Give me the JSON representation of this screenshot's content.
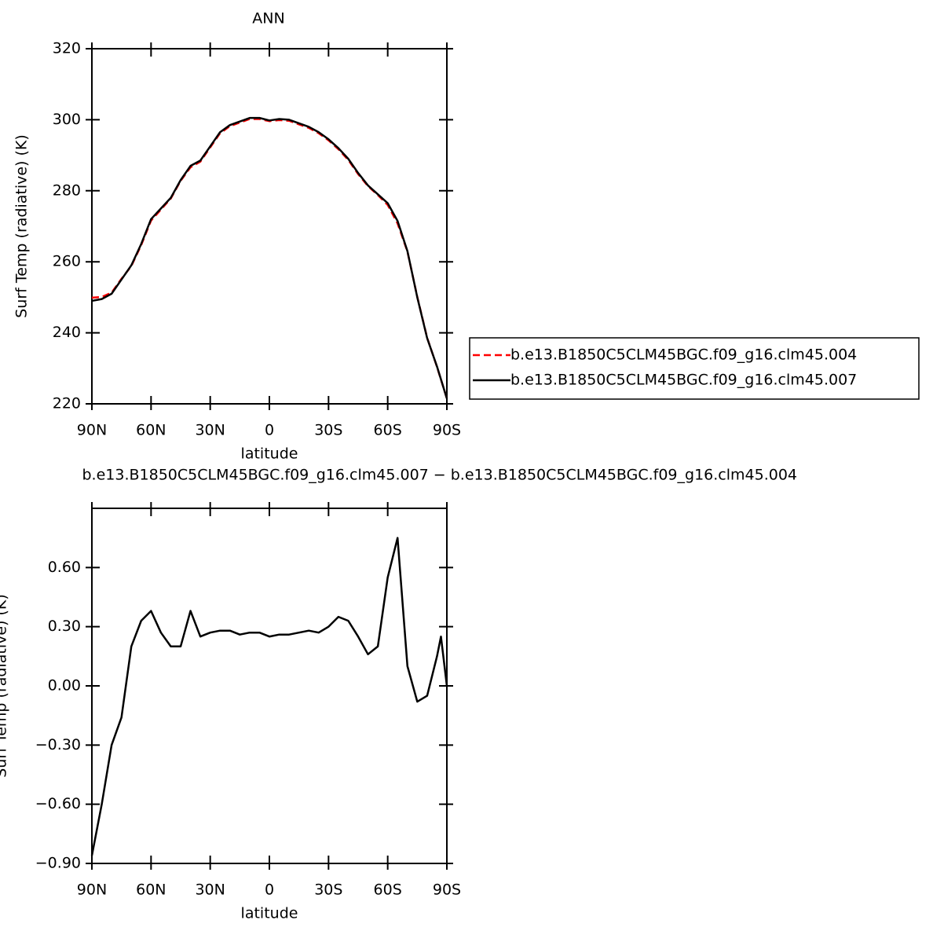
{
  "chart_data": [
    {
      "type": "line",
      "title": "ANN",
      "xlabel": "latitude",
      "ylabel": "Surf Temp (radiative) (K)",
      "x": [
        90,
        85,
        80,
        75,
        70,
        65,
        60,
        55,
        50,
        45,
        40,
        35,
        30,
        25,
        20,
        15,
        10,
        5,
        0,
        -5,
        -10,
        -15,
        -20,
        -25,
        -30,
        -35,
        -40,
        -45,
        -50,
        -55,
        -60,
        -65,
        -70,
        -75,
        -80,
        -85,
        -90
      ],
      "series": [
        {
          "name": "b.e13.B1850C5CLM45BGC.f09_g16.clm45.004",
          "color": "#ff0000",
          "linestyle": "dashed",
          "values": [
            249.9,
            250.1,
            251.3,
            255.2,
            258.8,
            264.7,
            271.6,
            274.7,
            277.8,
            282.8,
            286.6,
            288.2,
            292.2,
            296.2,
            298.2,
            299.2,
            300.2,
            300.2,
            299.6,
            299.9,
            299.7,
            298.7,
            297.7,
            296.2,
            294.2,
            291.7,
            288.7,
            284.7,
            281.3,
            278.8,
            276.0,
            270.8,
            262.9,
            250.1,
            238.6,
            230.4,
            221.5
          ]
        },
        {
          "name": "b.e13.B1850C5CLM45BGC.f09_g16.clm45.007",
          "color": "#000000",
          "linestyle": "solid",
          "values": [
            249,
            249.5,
            251,
            255,
            259,
            265,
            272,
            275,
            278,
            283,
            287,
            288.5,
            292.5,
            296.5,
            298.5,
            299.5,
            300.5,
            300.5,
            299.8,
            300.2,
            300,
            299,
            298,
            296.5,
            294.5,
            292,
            289,
            285,
            281.5,
            279,
            276.5,
            271.5,
            263,
            250,
            238.5,
            230.5,
            221.5
          ]
        }
      ],
      "xlim": [
        90,
        -90
      ],
      "xticks": [
        {
          "value": 90,
          "label": "90N"
        },
        {
          "value": 60,
          "label": "60N"
        },
        {
          "value": 30,
          "label": "30N"
        },
        0,
        {
          "value": -30,
          "label": "30S"
        },
        {
          "value": -60,
          "label": "60S"
        },
        {
          "value": -90,
          "label": "90S"
        }
      ],
      "ylim": [
        220,
        320
      ],
      "yticks": [
        220,
        240,
        260,
        280,
        300,
        320
      ],
      "legend": "outside-right"
    },
    {
      "type": "line",
      "title": "b.e13.B1850C5CLM45BGC.f09_g16.clm45.007 − b.e13.B1850C5CLM45BGC.f09_g16.clm45.004",
      "xlabel": "latitude",
      "ylabel": "Surf Temp (radiative) (K)",
      "x": [
        90,
        85,
        80,
        75,
        70,
        65,
        60,
        55,
        50,
        45,
        40,
        35,
        30,
        25,
        20,
        15,
        10,
        5,
        0,
        -5,
        -10,
        -15,
        -20,
        -25,
        -30,
        -35,
        -40,
        -45,
        -50,
        -55,
        -60,
        -65,
        -70,
        -75,
        -80,
        -85,
        -87,
        -90
      ],
      "series": [
        {
          "color": "#000000",
          "values": [
            -0.86,
            -0.6,
            -0.3,
            -0.16,
            0.2,
            0.33,
            0.38,
            0.27,
            0.2,
            0.2,
            0.38,
            0.25,
            0.27,
            0.28,
            0.28,
            0.26,
            0.27,
            0.27,
            0.25,
            0.26,
            0.26,
            0.27,
            0.28,
            0.27,
            0.3,
            0.35,
            0.33,
            0.25,
            0.16,
            0.2,
            0.55,
            0.75,
            0.1,
            -0.08,
            -0.05,
            0.15,
            0.25,
            0.0
          ]
        }
      ],
      "xlim": [
        90,
        -90
      ],
      "xticks": [
        {
          "value": 90,
          "label": "90N"
        },
        {
          "value": 60,
          "label": "60N"
        },
        {
          "value": 30,
          "label": "30N"
        },
        0,
        {
          "value": -30,
          "label": "30S"
        },
        {
          "value": -60,
          "label": "60S"
        },
        {
          "value": -90,
          "label": "90S"
        }
      ],
      "ylim": [
        -0.9,
        0.9
      ],
      "yticks": [
        {
          "value": -0.9,
          "label": "−0.90"
        },
        {
          "value": -0.6,
          "label": "−0.60"
        },
        {
          "value": -0.3,
          "label": "−0.30"
        },
        {
          "value": 0,
          "label": "0.00"
        },
        {
          "value": 0.3,
          "label": "0.30"
        },
        {
          "value": 0.6,
          "label": "0.60"
        }
      ]
    }
  ]
}
